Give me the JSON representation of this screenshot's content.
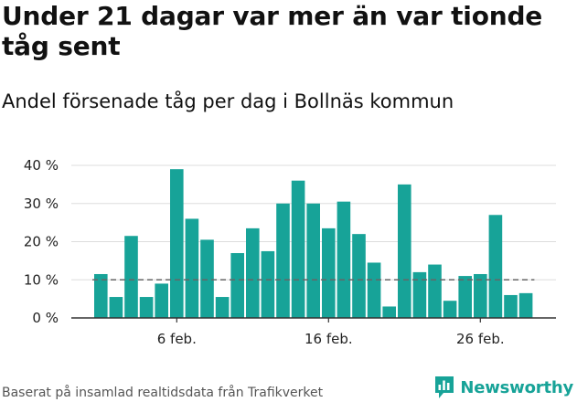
{
  "header": {
    "title": "Under 21 dagar var mer än var tionde tåg sent",
    "subtitle": "Andel försenade tåg per dag i Bollnäs kommun"
  },
  "footer": {
    "source": "Baserat på insamlad realtidsdata från Trafikverket",
    "brand": "Newsworthy"
  },
  "colors": {
    "bar": "#17a398",
    "reference_line": "#666666",
    "grid": "#dddddd",
    "axis": "#333333",
    "brand": "#17a398"
  },
  "chart_data": {
    "type": "bar",
    "title": "Under 21 dagar var mer än var tionde tåg sent",
    "subtitle": "Andel försenade tåg per dag i Bollnäs kommun",
    "xlabel": "",
    "ylabel": "",
    "x_unit": "day of February",
    "y_unit": "%",
    "x": [
      1,
      2,
      3,
      4,
      5,
      6,
      7,
      8,
      9,
      10,
      11,
      12,
      13,
      14,
      15,
      16,
      17,
      18,
      19,
      20,
      21,
      22,
      23,
      24,
      25,
      26,
      27,
      28,
      29
    ],
    "values": [
      11.5,
      5.5,
      21.5,
      5.5,
      9,
      39,
      26,
      20.5,
      5.5,
      17,
      23.5,
      17.5,
      30,
      36,
      30,
      23.5,
      30.5,
      22,
      14.5,
      3,
      35,
      12,
      14,
      4.5,
      11,
      11.5,
      27,
      6,
      6.5
    ],
    "reference_line": 10,
    "ylim": [
      0,
      40
    ],
    "yticks": [
      0,
      10,
      20,
      30,
      40
    ],
    "ytick_labels": [
      "0 %",
      "10 %",
      "20 %",
      "30 %",
      "40 %"
    ],
    "xticks": [
      6,
      16,
      26
    ],
    "xtick_labels": [
      "6 feb.",
      "16 feb.",
      "26 feb."
    ],
    "grid": true,
    "legend": "none"
  }
}
